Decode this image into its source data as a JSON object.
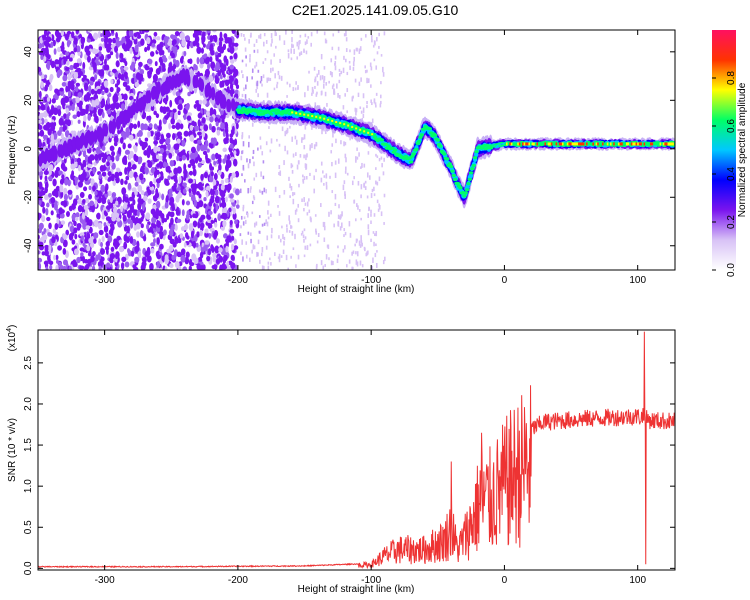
{
  "title": "C2E1.2025.141.09.05.G10",
  "colors": {
    "snr_line": "#ee3333",
    "noise_dot": "#7a14ee",
    "faint_dot": "#d8c2f6"
  },
  "chart_data": [
    {
      "type": "heatmap",
      "xlabel": "Height of straight line (km)",
      "ylabel": "Frequency (Hz)",
      "xlim": [
        -350,
        128
      ],
      "ylim": [
        -50,
        49
      ],
      "xticks": [
        -300,
        -200,
        -100,
        0,
        100
      ],
      "yticks": [
        -40,
        -20,
        0,
        20,
        40
      ],
      "colorbar": {
        "label": "Normalized spectral amplitude",
        "range": [
          0,
          1
        ],
        "ticks": [
          "0.0",
          "0.2",
          "0.4",
          "0.6",
          "0.8"
        ],
        "tick_values": [
          0.0,
          0.2,
          0.4,
          0.6,
          0.8
        ],
        "colormap": [
          "#ffffff",
          "#d8c2f6",
          "#7a14ee",
          "#0000ff",
          "#00c8ff",
          "#00ff66",
          "#ffff00",
          "#ff3300",
          "#ff1060"
        ]
      },
      "ridge": [
        {
          "x": -350,
          "f": -5
        },
        {
          "x": -330,
          "f": 0
        },
        {
          "x": -300,
          "f": 7
        },
        {
          "x": -280,
          "f": 15
        },
        {
          "x": -260,
          "f": 24
        },
        {
          "x": -240,
          "f": 30
        },
        {
          "x": -200,
          "f": 16
        },
        {
          "x": -180,
          "f": 15
        },
        {
          "x": -160,
          "f": 15
        },
        {
          "x": -140,
          "f": 13
        },
        {
          "x": -120,
          "f": 10
        },
        {
          "x": -100,
          "f": 6
        },
        {
          "x": -90,
          "f": 2
        },
        {
          "x": -80,
          "f": -2
        },
        {
          "x": -70,
          "f": -5
        },
        {
          "x": -60,
          "f": 9
        },
        {
          "x": -55,
          "f": 7
        },
        {
          "x": -50,
          "f": 3
        },
        {
          "x": -45,
          "f": -3
        },
        {
          "x": -40,
          "f": -8
        },
        {
          "x": -35,
          "f": -15
        },
        {
          "x": -30,
          "f": -20
        },
        {
          "x": -20,
          "f": 0
        },
        {
          "x": 0,
          "f": 2
        },
        {
          "x": 50,
          "f": 2
        },
        {
          "x": 100,
          "f": 2
        },
        {
          "x": 128,
          "f": 2
        }
      ]
    },
    {
      "type": "line",
      "xlabel": "Height of straight line (km)",
      "ylabel": "SNR (10 * v/v)",
      "y_multiplier": "(x10",
      "y_multiplier_exp": "4",
      "xlim": [
        -350,
        128
      ],
      "ylim": [
        -0.02,
        2.9
      ],
      "xticks": [
        -300,
        -200,
        -100,
        0,
        100
      ],
      "yticks": [
        "0.0",
        "0.5",
        "1.0",
        "1.5",
        "2.0",
        "2.5"
      ],
      "ytick_values": [
        0.0,
        0.5,
        1.0,
        1.5,
        2.0,
        2.5
      ],
      "envelope": [
        {
          "x": -350,
          "y": 0.02
        },
        {
          "x": -250,
          "y": 0.02
        },
        {
          "x": -150,
          "y": 0.03
        },
        {
          "x": -100,
          "y": 0.06
        },
        {
          "x": -90,
          "y": 0.2
        },
        {
          "x": -80,
          "y": 0.3
        },
        {
          "x": -60,
          "y": 0.3
        },
        {
          "x": -45,
          "y": 0.45
        },
        {
          "x": -40,
          "y": 0.65
        },
        {
          "x": -35,
          "y": 0.3
        },
        {
          "x": -25,
          "y": 0.7
        },
        {
          "x": -18,
          "y": 1.1
        },
        {
          "x": -10,
          "y": 1.1
        },
        {
          "x": 0,
          "y": 1.35
        },
        {
          "x": 15,
          "y": 1.65
        },
        {
          "x": 30,
          "y": 1.78
        },
        {
          "x": 60,
          "y": 1.82
        },
        {
          "x": 100,
          "y": 1.85
        },
        {
          "x": 110,
          "y": 1.8
        },
        {
          "x": 128,
          "y": 1.79
        }
      ],
      "spikes": [
        {
          "x": -17,
          "y": 1.65
        },
        {
          "x": -40,
          "y": 1.3
        },
        {
          "x": 104,
          "y": 1.95
        },
        {
          "x": 105,
          "y": 2.88
        },
        {
          "x": 106,
          "y": 0.05
        }
      ]
    }
  ]
}
